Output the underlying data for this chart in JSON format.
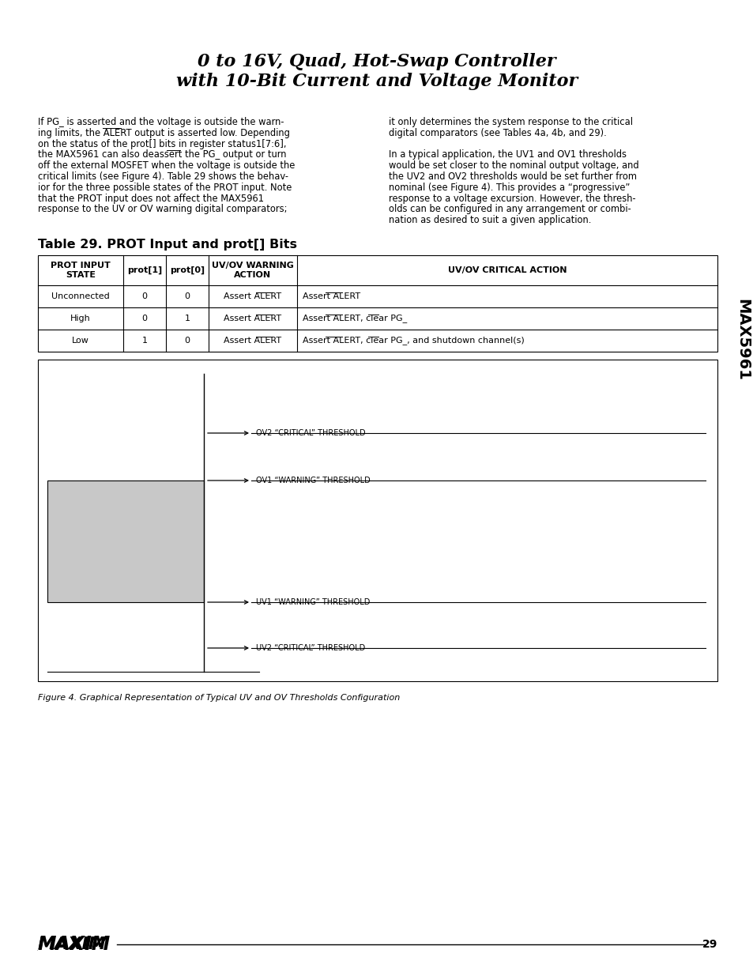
{
  "title_line1": "0 to 16V, Quad, Hot-Swap Controller",
  "title_line2": "with 10-Bit Current and Voltage Monitor",
  "page_number": "29",
  "sidebar_text": "MAX5961",
  "body_left_lines": [
    "If PG_ is asserted and the voltage is outside the warn-",
    "ing limits, the ALERT output is asserted low. Depending",
    "on the status of the prot[] bits in register status1[7:6],",
    "the MAX5961 can also deassert the PG_ output or turn",
    "off the external MOSFET when the voltage is outside the",
    "critical limits (see Figure 4). Table 29 shows the behav-",
    "ior for the three possible states of the PROT input. Note",
    "that the PROT input does not affect the MAX5961",
    "response to the UV or OV warning digital comparators;"
  ],
  "body_right_lines": [
    "it only determines the system response to the critical",
    "digital comparators (see Tables 4a, 4b, and 29).",
    "",
    "In a typical application, the UV1 and OV1 thresholds",
    "would be set closer to the nominal output voltage, and",
    "the UV2 and OV2 thresholds would be set further from",
    "nominal (see Figure 4). This provides a “progressive”",
    "response to a voltage excursion. However, the thresh-",
    "olds can be configured in any arrangement or combi-",
    "nation as desired to suit a given application."
  ],
  "table_title": "Table 29. PROT Input and prot[] Bits",
  "table_headers": [
    "PROT INPUT\nSTATE",
    "prot[1]",
    "prot[0]",
    "UV/OV WARNING\nACTION",
    "UV/OV CRITICAL ACTION"
  ],
  "table_rows": [
    [
      "Unconnected",
      "0",
      "0",
      "Assert ALERT",
      "Assert ALERT"
    ],
    [
      "High",
      "0",
      "1",
      "Assert ALERT",
      "Assert ALERT, clear PG_"
    ],
    [
      "Low",
      "1",
      "0",
      "Assert ALERT",
      "Assert ALERT, clear PG_, and shutdown channel(s)"
    ]
  ],
  "figure_caption": "Figure 4. Graphical Representation of Typical UV and OV Thresholds Configuration",
  "threshold_labels": [
    "OV2 “CRITICAL” THRESHOLD",
    "OV1 “WARNING” THRESHOLD",
    "UV1 “WARNING” THRESHOLD",
    "UV2 “CRITICAL” THRESHOLD"
  ],
  "bg_color": "#ffffff",
  "text_color": "#000000",
  "gray_fill": "#c8c8c8"
}
